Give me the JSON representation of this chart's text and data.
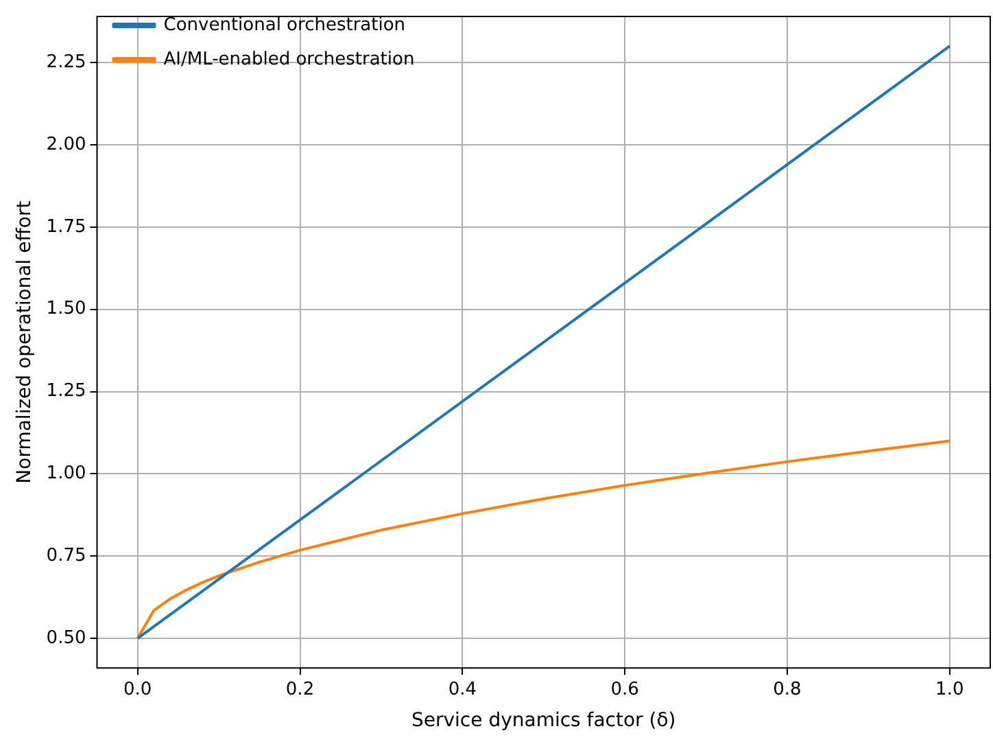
{
  "chart_data": {
    "type": "line",
    "xlabel": "Service dynamics factor (δ)",
    "ylabel": "Normalized operational effort",
    "series": [
      {
        "name": "Conventional orchestration",
        "color": "#1f77b4",
        "x": [
          0,
          1.0
        ],
        "values": [
          0.5,
          2.3
        ]
      },
      {
        "name": "AI/ML-enabled orchestration",
        "color": "#ff7f0e",
        "x": [
          0,
          0.02,
          0.04,
          0.06,
          0.08,
          0.1,
          0.15,
          0.2,
          0.3,
          0.4,
          0.5,
          0.6,
          0.7,
          0.8,
          0.9,
          1.0
        ],
        "values": [
          0.5,
          0.585,
          0.62,
          0.647,
          0.67,
          0.69,
          0.732,
          0.768,
          0.829,
          0.879,
          0.924,
          0.965,
          1.002,
          1.037,
          1.069,
          1.1
        ]
      }
    ],
    "xlim": [
      -0.05,
      1.05
    ],
    "xticks": [
      {
        "value": 0,
        "label": "0.0"
      },
      0.2,
      0.4,
      0.6,
      0.8,
      {
        "value": 1,
        "label": "1.0"
      }
    ],
    "ylim": [
      0.41,
      2.39
    ],
    "yticks": [
      {
        "value": 0.5,
        "label": "0.50"
      },
      0.75,
      {
        "value": 1,
        "label": "1.00"
      },
      1.25,
      {
        "value": 1.5,
        "label": "1.50"
      },
      1.75,
      {
        "value": 2,
        "label": "2.00"
      },
      2.25
    ],
    "grid": true,
    "legend": "top left",
    "marker": "none",
    "line_style": "solid"
  }
}
